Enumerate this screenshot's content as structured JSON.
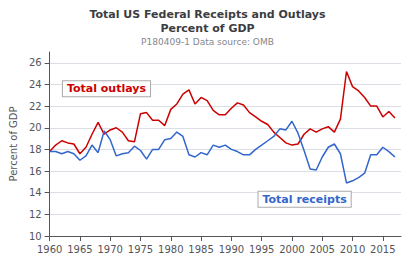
{
  "chart_data": {
    "type": "line",
    "title": "Total US Federal Receipts and Outlays\nPercent of GDP",
    "subtitle": "P180409-1 Data source: OMB",
    "ylabel": "Percent of GDP",
    "x": [
      1960,
      1961,
      1962,
      1963,
      1964,
      1965,
      1966,
      1967,
      1968,
      1969,
      1970,
      1971,
      1972,
      1973,
      1974,
      1975,
      1976,
      1977,
      1978,
      1979,
      1980,
      1981,
      1982,
      1983,
      1984,
      1985,
      1986,
      1987,
      1988,
      1989,
      1990,
      1991,
      1992,
      1993,
      1994,
      1995,
      1996,
      1997,
      1998,
      1999,
      2000,
      2001,
      2002,
      2003,
      2004,
      2005,
      2006,
      2007,
      2008,
      2009,
      2010,
      2011,
      2012,
      2013,
      2014,
      2015,
      2016,
      2017
    ],
    "series": [
      {
        "name": "Total outlays",
        "color": "#cc0000",
        "values": [
          17.8,
          18.4,
          18.8,
          18.6,
          18.5,
          17.6,
          18.2,
          19.4,
          20.5,
          19.4,
          19.8,
          20.0,
          19.6,
          18.8,
          18.7,
          21.3,
          21.4,
          20.7,
          20.7,
          20.2,
          21.7,
          22.2,
          23.1,
          23.5,
          22.2,
          22.8,
          22.5,
          21.6,
          21.2,
          21.2,
          21.8,
          22.3,
          22.1,
          21.4,
          21.0,
          20.6,
          20.3,
          19.6,
          19.1,
          18.6,
          18.4,
          18.5,
          19.4,
          19.9,
          19.6,
          19.9,
          20.1,
          19.6,
          20.8,
          25.2,
          23.8,
          23.4,
          22.8,
          22.0,
          22.0,
          21.0,
          21.5,
          20.9
        ]
      },
      {
        "name": "Total receipts",
        "color": "#3366cc",
        "values": [
          17.8,
          17.8,
          17.6,
          17.8,
          17.6,
          17.0,
          17.4,
          18.4,
          17.7,
          19.7,
          18.9,
          17.4,
          17.6,
          17.7,
          18.3,
          17.9,
          17.1,
          18.0,
          18.0,
          18.9,
          19.0,
          19.6,
          19.2,
          17.5,
          17.3,
          17.7,
          17.5,
          18.4,
          18.2,
          18.4,
          18.0,
          17.8,
          17.5,
          17.5,
          18.0,
          18.4,
          18.8,
          19.2,
          19.9,
          19.8,
          20.6,
          19.5,
          17.9,
          16.2,
          16.1,
          17.3,
          18.2,
          18.5,
          17.6,
          14.9,
          15.1,
          15.4,
          15.8,
          17.5,
          17.5,
          18.2,
          17.8,
          17.3
        ]
      }
    ],
    "xlim": [
      1960,
      2018
    ],
    "xticks": [
      1960,
      1965,
      1970,
      1975,
      1980,
      1985,
      1990,
      1995,
      2000,
      2005,
      2010,
      2015
    ],
    "ylim": [
      10,
      27
    ],
    "yticks": [
      10,
      12,
      14,
      16,
      18,
      20,
      22,
      24,
      26
    ],
    "grid": true
  }
}
